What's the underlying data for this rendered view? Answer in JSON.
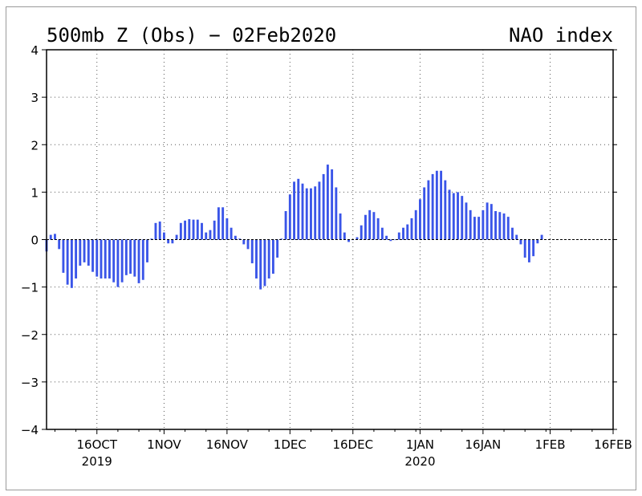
{
  "chart_data": {
    "type": "bar",
    "title": "500mb Z (Obs) − 02Feb2020",
    "subtitle": "NAO index",
    "xlabel": "",
    "ylabel": "",
    "ylim": [
      -4,
      4
    ],
    "y_ticks": [
      {
        "value": 4,
        "label": "4"
      },
      {
        "value": 3,
        "label": "3"
      },
      {
        "value": 2,
        "label": "2"
      },
      {
        "value": 1,
        "label": "1"
      },
      {
        "value": 0,
        "label": "0"
      },
      {
        "value": -1,
        "label": "−1"
      },
      {
        "value": -2,
        "label": "−2"
      },
      {
        "value": -3,
        "label": "−3"
      },
      {
        "value": -4,
        "label": "−4"
      }
    ],
    "x_range": [
      "2019-10-04",
      "2020-02-16"
    ],
    "x_ticks": [
      {
        "date": "2019-10-16",
        "label": "16OCT",
        "sublabel": "2019"
      },
      {
        "date": "2019-11-01",
        "label": "1NOV",
        "sublabel": ""
      },
      {
        "date": "2019-11-16",
        "label": "16NOV",
        "sublabel": ""
      },
      {
        "date": "2019-12-01",
        "label": "1DEC",
        "sublabel": ""
      },
      {
        "date": "2019-12-16",
        "label": "16DEC",
        "sublabel": ""
      },
      {
        "date": "2020-01-01",
        "label": "1JAN",
        "sublabel": "2020"
      },
      {
        "date": "2020-01-16",
        "label": "16JAN",
        "sublabel": ""
      },
      {
        "date": "2020-02-01",
        "label": "1FEB",
        "sublabel": ""
      },
      {
        "date": "2020-02-16",
        "label": "16FEB",
        "sublabel": ""
      }
    ],
    "grid": true,
    "start_date": "2019-10-04",
    "values": [
      -0.25,
      0.1,
      0.12,
      -0.2,
      -0.7,
      -0.95,
      -1.02,
      -0.82,
      -0.55,
      -0.48,
      -0.55,
      -0.68,
      -0.78,
      -0.82,
      -0.82,
      -0.82,
      -0.9,
      -1.0,
      -0.9,
      -0.75,
      -0.72,
      -0.78,
      -0.92,
      -0.85,
      -0.48,
      0.02,
      0.35,
      0.38,
      0.15,
      -0.08,
      -0.08,
      0.1,
      0.35,
      0.4,
      0.43,
      0.42,
      0.42,
      0.35,
      0.15,
      0.2,
      0.4,
      0.68,
      0.68,
      0.45,
      0.25,
      0.08,
      0.02,
      -0.1,
      -0.2,
      -0.5,
      -0.82,
      -1.05,
      -0.98,
      -0.82,
      -0.72,
      -0.38,
      0.02,
      0.6,
      0.95,
      1.22,
      1.28,
      1.18,
      1.08,
      1.08,
      1.12,
      1.22,
      1.38,
      1.58,
      1.48,
      1.1,
      0.55,
      0.15,
      -0.05,
      0.0,
      0.05,
      0.3,
      0.52,
      0.62,
      0.58,
      0.45,
      0.25,
      0.08,
      -0.03,
      0.0,
      0.15,
      0.25,
      0.32,
      0.45,
      0.62,
      0.85,
      1.1,
      1.25,
      1.38,
      1.45,
      1.45,
      1.25,
      1.05,
      0.98,
      1.0,
      0.92,
      0.78,
      0.62,
      0.48,
      0.48,
      0.62,
      0.78,
      0.75,
      0.6,
      0.58,
      0.55,
      0.48,
      0.25,
      0.1,
      -0.1,
      -0.38,
      -0.48,
      -0.35,
      -0.08,
      0.1
    ],
    "bar_color": "#3a55e8"
  }
}
